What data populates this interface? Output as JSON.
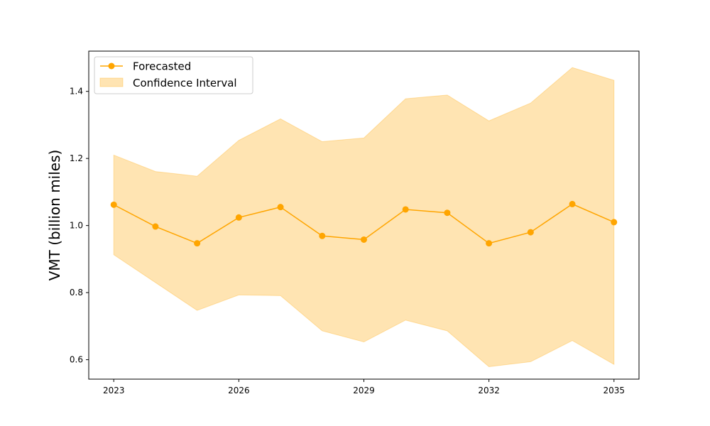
{
  "chart_data": {
    "type": "line",
    "title": "",
    "xlabel": "",
    "ylabel": "VMT (billion miles)",
    "x": [
      2023,
      2024,
      2025,
      2026,
      2027,
      2028,
      2029,
      2030,
      2031,
      2032,
      2033,
      2034,
      2035
    ],
    "xticks": [
      2023,
      2026,
      2029,
      2032,
      2035
    ],
    "yticks": [
      0.6,
      0.8,
      1.0,
      1.2,
      1.4
    ],
    "ytick_labels": [
      "0.6",
      "0.8",
      "1.0",
      "1.2",
      "1.4"
    ],
    "xlim": [
      2022.4,
      2035.6
    ],
    "ylim": [
      0.542,
      1.52
    ],
    "series": [
      {
        "name": "Forecasted",
        "values": [
          1.062,
          0.997,
          0.947,
          1.024,
          1.055,
          0.969,
          0.958,
          1.048,
          1.038,
          0.947,
          0.98,
          1.064,
          1.01
        ],
        "color": "#ffa500"
      }
    ],
    "band": {
      "name": "Confidence Interval",
      "lower": [
        0.913,
        0.83,
        0.747,
        0.793,
        0.791,
        0.686,
        0.653,
        0.718,
        0.686,
        0.579,
        0.594,
        0.657,
        0.586
      ],
      "upper": [
        1.21,
        1.161,
        1.147,
        1.254,
        1.318,
        1.25,
        1.261,
        1.378,
        1.389,
        1.312,
        1.365,
        1.471,
        1.433
      ],
      "color": "#ffa500",
      "alpha": 0.3
    },
    "legend": {
      "position": "top-left",
      "entries": [
        "Forecasted",
        "Confidence Interval"
      ]
    },
    "grid": false
  }
}
